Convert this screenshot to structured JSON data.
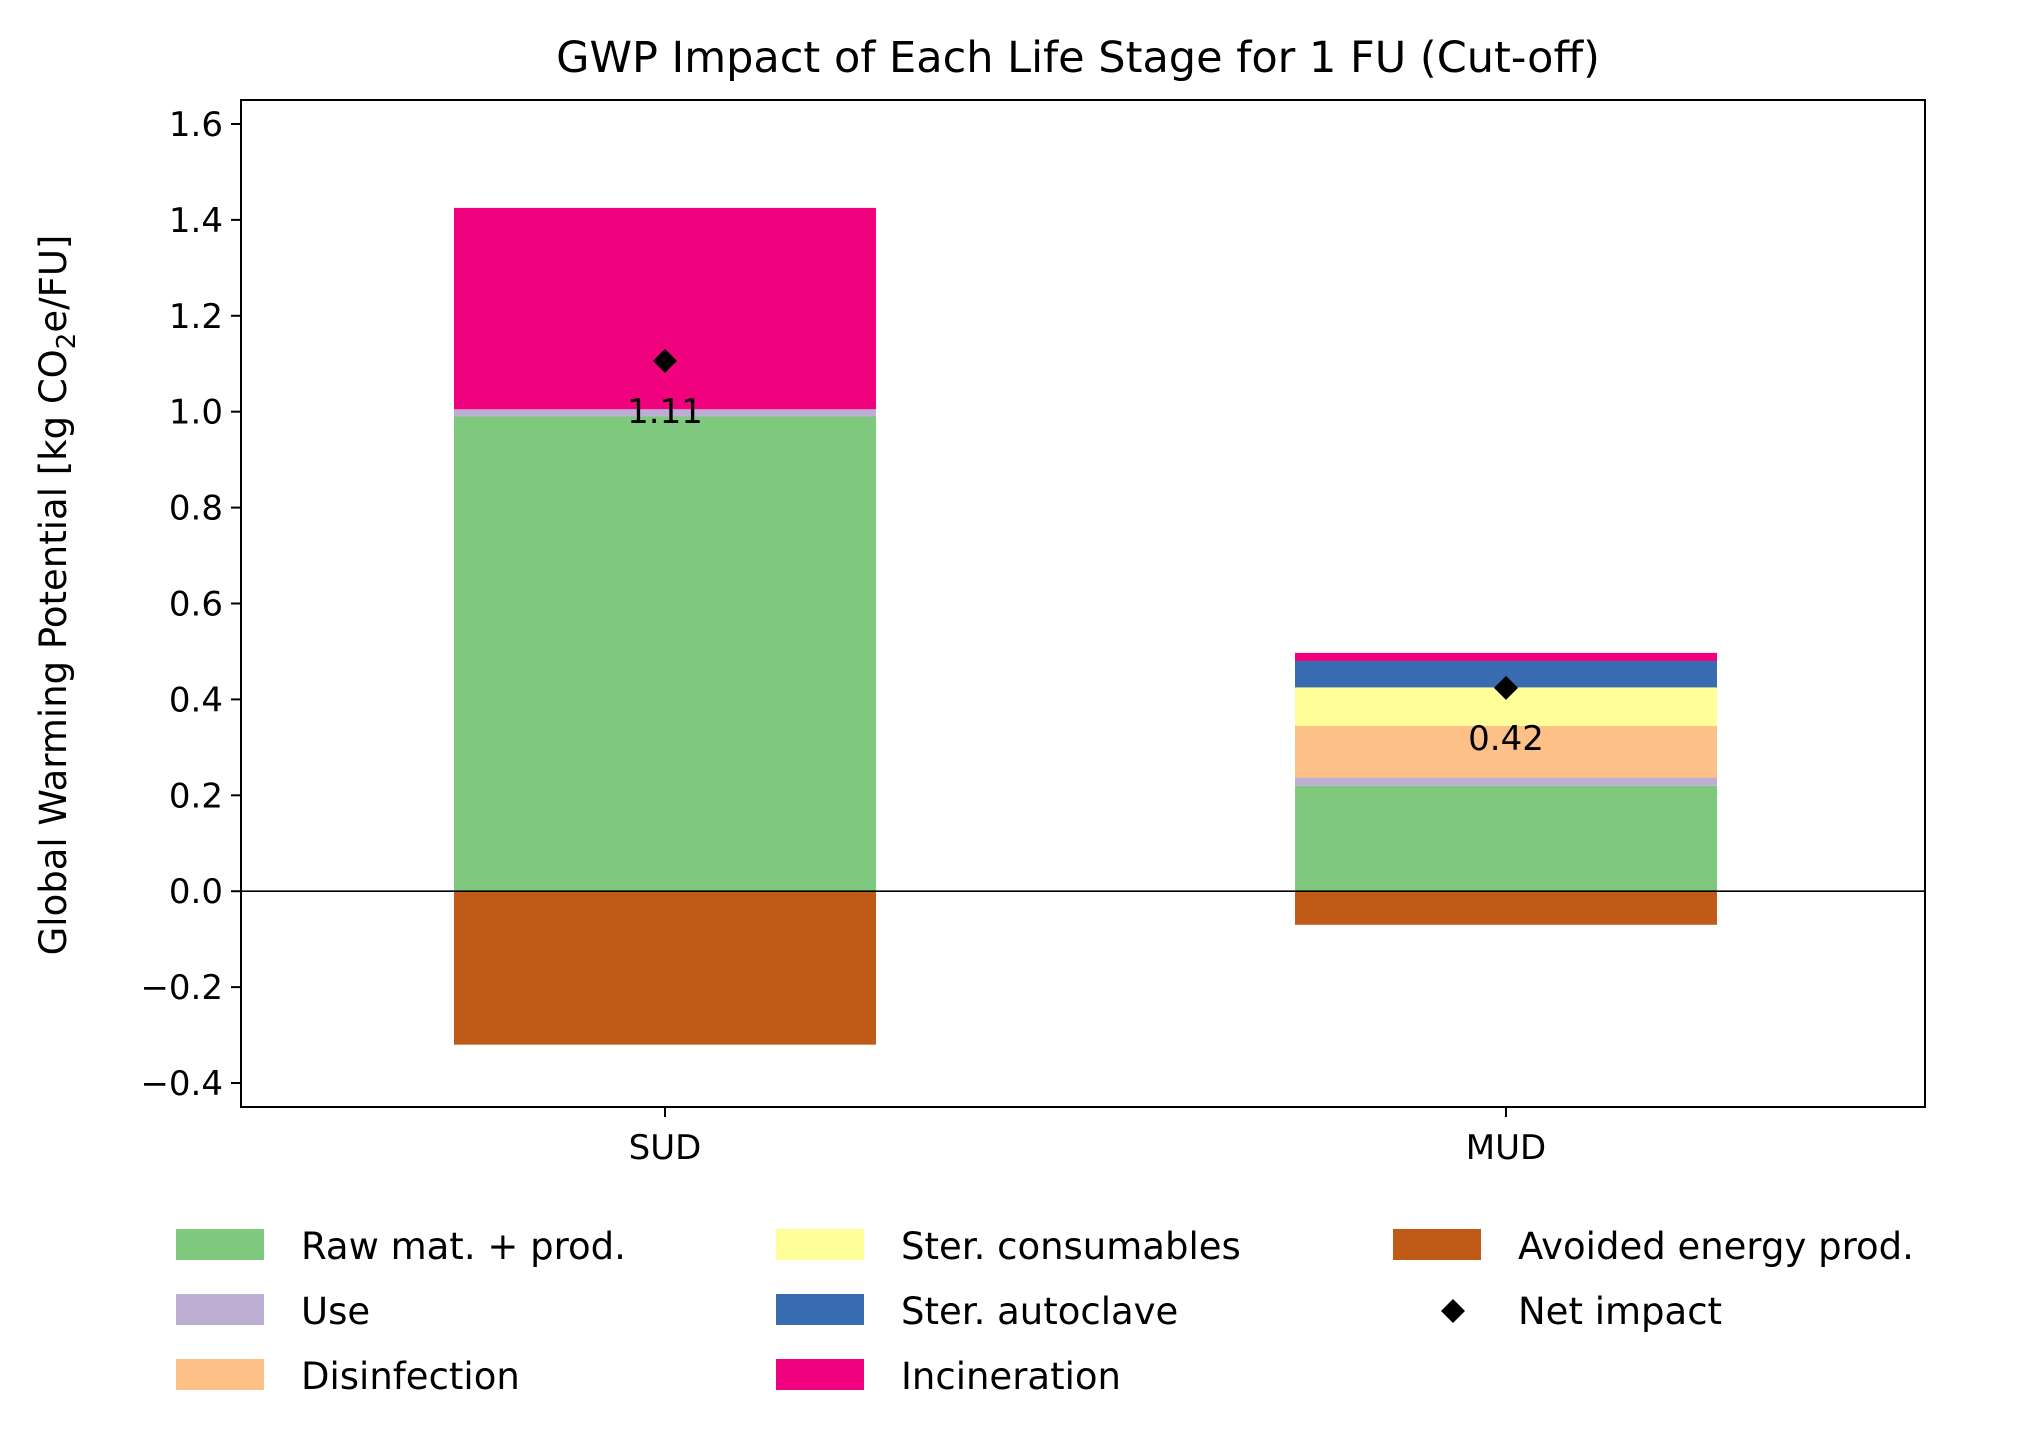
{
  "chart_data": {
    "type": "bar",
    "title": "GWP Impact of Each Life Stage for 1 FU (Cut-off)",
    "ylabel_main": "Global Warming Potential [kg CO",
    "ylabel_sub": "2",
    "ylabel_tail": "e/FU]",
    "xlabel": "",
    "ylim": [
      -0.45,
      1.65
    ],
    "yticks": [
      -0.4,
      -0.2,
      0.0,
      0.2,
      0.4,
      0.6,
      0.8,
      1.0,
      1.2,
      1.4,
      1.6
    ],
    "ytick_labels": [
      "−0.4",
      "−0.2",
      "0.0",
      "0.2",
      "0.4",
      "0.6",
      "0.8",
      "1.0",
      "1.2",
      "1.4",
      "1.6"
    ],
    "categories": [
      "SUD",
      "MUD"
    ],
    "series": [
      {
        "name": "Raw mat. + prod.",
        "color": "#7fc97f",
        "values": [
          0.99,
          0.22
        ]
      },
      {
        "name": "Use",
        "color": "#beaed4",
        "values": [
          0.015,
          0.017
        ]
      },
      {
        "name": "Disinfection",
        "color": "#fdc086",
        "values": [
          0.0,
          0.108
        ]
      },
      {
        "name": "Ster. consumables",
        "color": "#ffff99",
        "values": [
          0.0,
          0.08
        ]
      },
      {
        "name": "Ster. autoclave",
        "color": "#386cb0",
        "values": [
          0.0,
          0.055
        ]
      },
      {
        "name": "Incineration",
        "color": "#f0027f",
        "values": [
          0.42,
          0.017
        ]
      },
      {
        "name": "Avoided energy prod.",
        "color": "#bf5b17",
        "values": [
          -0.32,
          -0.07
        ]
      }
    ],
    "net_impact": {
      "name": "Net impact",
      "values": [
        1.106,
        0.424
      ],
      "labels": [
        "1.11",
        "0.42"
      ],
      "color": "#000000"
    },
    "legend_order": [
      "Raw mat. + prod.",
      "Use",
      "Disinfection",
      "Ster. consumables",
      "Ster. autoclave",
      "Incineration",
      "Avoided energy prod.",
      "Net impact"
    ],
    "legend_position": "bottom",
    "grid": false,
    "zero_line": true
  }
}
